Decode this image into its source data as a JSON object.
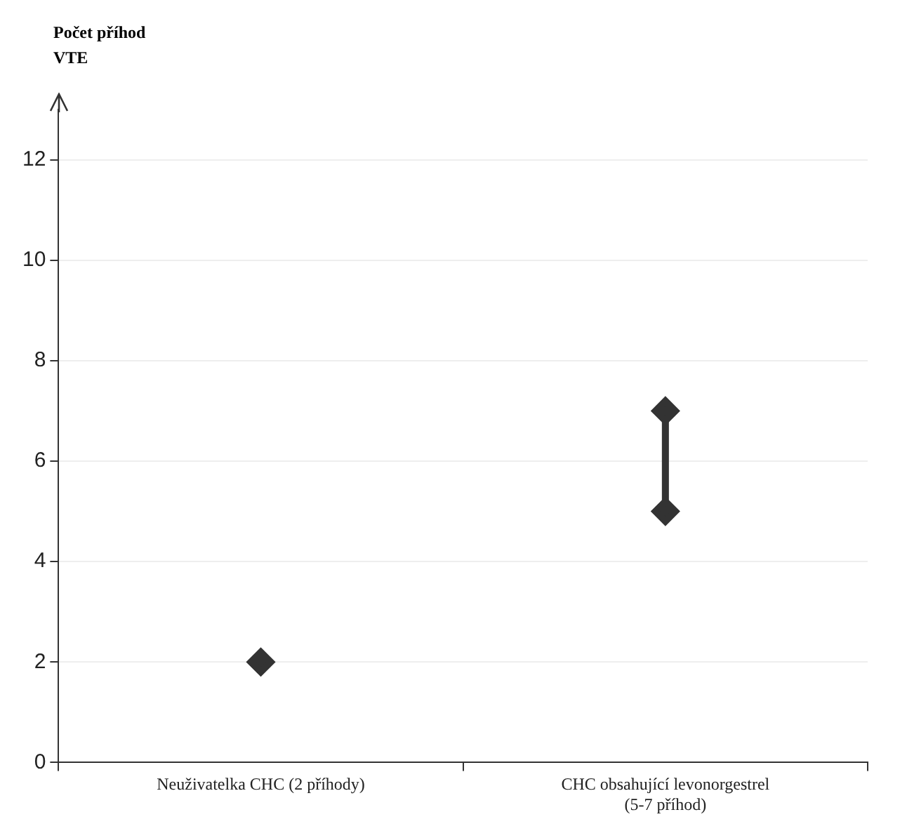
{
  "chart_data": {
    "type": "scatter",
    "ylabel": "Počet příhod\nVTE",
    "categories": [
      "Neuživatelka CHC (2 příhody)",
      "CHC obsahující levonorgestrel\n(5-7 příhod)"
    ],
    "series": [
      {
        "color": "#333333",
        "values": [
          2,
          null
        ]
      },
      {
        "type": "line",
        "color": "#333333",
        "x": [
          "CHC obsahující levonorgestrel\n(5-7 příhod)",
          "CHC obsahující levonorgestrel\n(5-7 příhod)"
        ],
        "values": [
          5,
          7
        ]
      }
    ],
    "ylim": [
      0,
      13
    ],
    "yticks": [
      0,
      2,
      4,
      6,
      8,
      10,
      12
    ],
    "grid": "y",
    "marker": "diamond"
  }
}
